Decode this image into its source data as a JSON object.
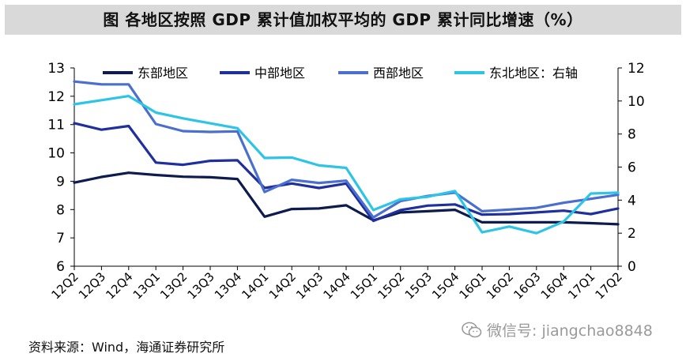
{
  "title": "图  各地区按照 GDP 累计值加权平均的 GDP 累计同比增速（%）",
  "source": "资料来源：Wind，海通证券研究所",
  "watermark": "微信号: jiangchao8848",
  "chart_data": {
    "type": "line",
    "categories": [
      "12Q2",
      "12Q3",
      "12Q4",
      "13Q1",
      "13Q2",
      "13Q3",
      "13Q4",
      "14Q1",
      "14Q2",
      "14Q3",
      "14Q4",
      "15Q1",
      "15Q2",
      "15Q3",
      "15Q4",
      "16Q1",
      "16Q2",
      "16Q3",
      "16Q4",
      "17Q1",
      "17Q2"
    ],
    "y_left": {
      "min": 6,
      "max": 13,
      "ticks": [
        6,
        7,
        8,
        9,
        10,
        11,
        12,
        13
      ]
    },
    "y_right": {
      "min": 0,
      "max": 12,
      "ticks": [
        0,
        2,
        4,
        6,
        8,
        10,
        12
      ]
    },
    "grid": false,
    "legend_position": "top",
    "series": [
      {
        "name": "东部地区",
        "axis": "left",
        "color": "#0d1b4f",
        "values": [
          8.95,
          9.15,
          9.3,
          9.22,
          9.16,
          9.14,
          9.08,
          7.75,
          8.02,
          8.04,
          8.15,
          7.62,
          7.9,
          7.94,
          7.99,
          7.55,
          7.55,
          7.55,
          7.55,
          7.52,
          7.48
        ]
      },
      {
        "name": "中部地区",
        "axis": "left",
        "color": "#1f2f9e",
        "values": [
          11.05,
          10.82,
          10.95,
          9.66,
          9.58,
          9.72,
          9.74,
          8.76,
          8.92,
          8.76,
          8.92,
          7.6,
          7.98,
          8.14,
          8.18,
          7.82,
          7.84,
          7.9,
          7.96,
          7.84,
          8.04
        ]
      },
      {
        "name": "西部地区",
        "axis": "left",
        "color": "#4b6fcf",
        "values": [
          12.52,
          12.42,
          12.42,
          11.02,
          10.77,
          10.74,
          10.76,
          8.62,
          9.05,
          8.94,
          9.02,
          7.72,
          8.3,
          8.48,
          8.6,
          7.94,
          8.0,
          8.06,
          8.24,
          8.38,
          8.52
        ]
      },
      {
        "name": "东北地区：右轴",
        "axis": "right",
        "color": "#2ec4e6",
        "values": [
          9.8,
          10.05,
          10.3,
          9.3,
          8.95,
          8.65,
          8.35,
          6.55,
          6.58,
          6.1,
          5.95,
          3.4,
          4.05,
          4.2,
          4.55,
          2.05,
          2.4,
          2.0,
          2.7,
          4.4,
          4.45
        ]
      }
    ]
  }
}
